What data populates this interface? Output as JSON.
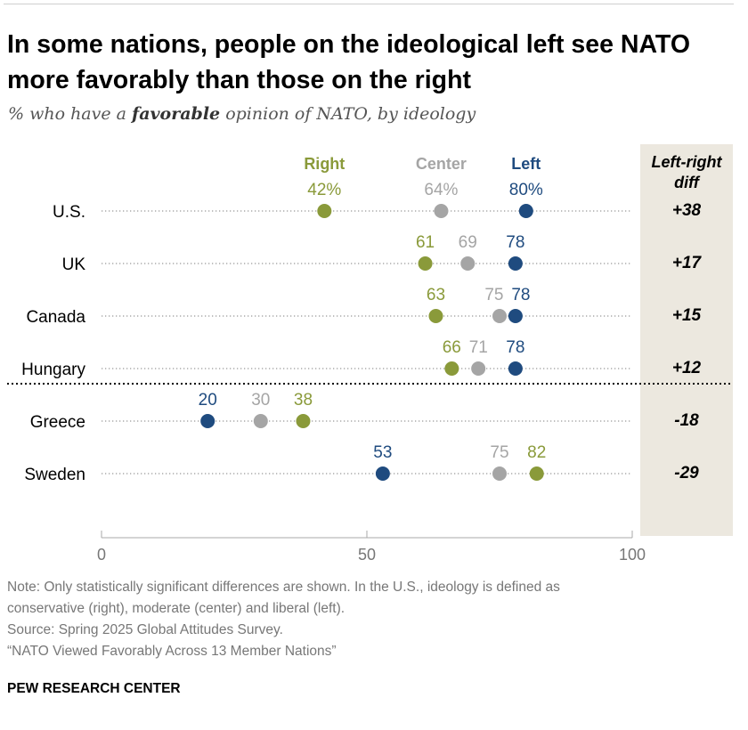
{
  "title": "In some nations, people on the ideological left see NATO more favorably than those on the right",
  "subtitle": {
    "before": "% who have a ",
    "emphasis": "favorable",
    "after": " opinion of NATO, by ideology"
  },
  "colors": {
    "right": "#8a9a3a",
    "center": "#a5a5a5",
    "left": "#1f4b7f",
    "panel": "#ece8df"
  },
  "chart_data": {
    "type": "dot",
    "xlim": [
      0,
      100
    ],
    "x_ticks": [
      "0",
      "50",
      "100"
    ],
    "legend": [
      "Right",
      "Center",
      "Left"
    ],
    "diff_header": "Left-right diff",
    "rows": [
      {
        "country": "U.S.",
        "right": 42,
        "center": 64,
        "left": 80,
        "labels": {
          "right": "42%",
          "center": "64%",
          "left": "80%"
        },
        "diff": "+38",
        "label_pos": "above"
      },
      {
        "country": "UK",
        "right": 61,
        "center": 69,
        "left": 78,
        "labels": {
          "right": "61",
          "center": "69",
          "left": "78"
        },
        "diff": "+17",
        "label_pos": "above"
      },
      {
        "country": "Canada",
        "right": 63,
        "center": 75,
        "left": 78,
        "labels": {
          "right": "63",
          "center": "75",
          "left": "78"
        },
        "diff": "+15",
        "label_pos": "above"
      },
      {
        "country": "Hungary",
        "right": 66,
        "center": 71,
        "left": 78,
        "labels": {
          "right": "66",
          "center": "71",
          "left": "78"
        },
        "diff": "+12",
        "label_pos": "above"
      },
      {
        "country": "Greece",
        "right": 38,
        "center": 30,
        "left": 20,
        "labels": {
          "right": "38",
          "center": "30",
          "left": "20"
        },
        "diff": "-18",
        "label_pos": "above"
      },
      {
        "country": "Sweden",
        "right": 82,
        "center": 75,
        "left": 53,
        "labels": {
          "right": "82",
          "center": "75",
          "left": "53"
        },
        "diff": "-29",
        "label_pos": "above"
      }
    ]
  },
  "footer": {
    "note_line1": "Note: Only statistically significant differences are shown. In the U.S., ideology is defined as",
    "note_line2": "conservative (right), moderate (center) and liberal (left).",
    "source": "Source: Spring 2025 Global Attitudes Survey.",
    "report": "“NATO Viewed Favorably Across 13 Member Nations”",
    "brand": "PEW RESEARCH CENTER"
  }
}
